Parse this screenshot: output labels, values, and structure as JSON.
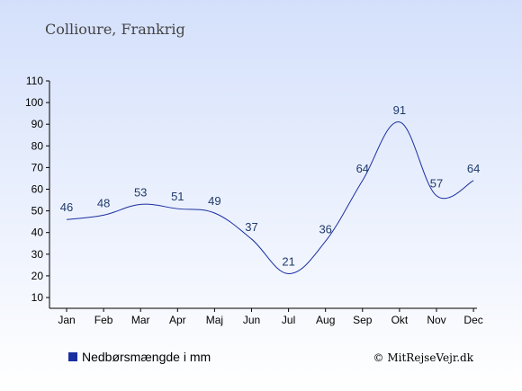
{
  "chart_data": {
    "type": "line",
    "title": "Collioure, Frankrig",
    "categories": [
      "Jan",
      "Feb",
      "Mar",
      "Apr",
      "Maj",
      "Jun",
      "Jul",
      "Aug",
      "Sep",
      "Okt",
      "Nov",
      "Dec"
    ],
    "series": [
      {
        "name": "Nedbørsmængde i mm",
        "values": [
          46,
          48,
          53,
          51,
          49,
          37,
          21,
          36,
          64,
          91,
          57,
          64
        ],
        "color": "#1a2fa0"
      }
    ],
    "y_ticks": [
      10,
      20,
      30,
      40,
      50,
      60,
      70,
      80,
      90,
      100,
      110
    ],
    "ylim": [
      10,
      110
    ],
    "grid": false,
    "legend_position": "bottom-left",
    "copyright": "© MitRejseVejr.dk",
    "colors": {
      "background_top": "#d4e0fb",
      "background_bottom": "#ffffff",
      "line": "#1a2fa0",
      "data_label": "#1f3a6b",
      "legend_marker": "#1a2fa0"
    }
  }
}
